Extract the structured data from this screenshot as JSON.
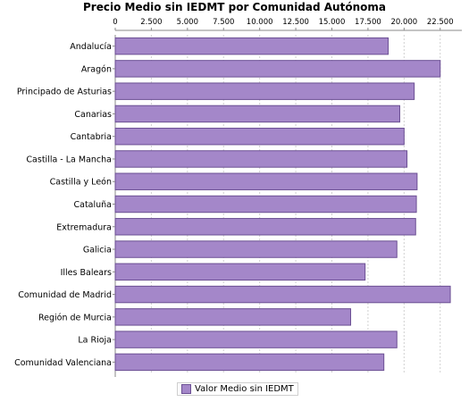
{
  "chart_data": {
    "type": "bar",
    "orientation": "horizontal",
    "title": "Precio Medio sin IEDMT por Comunidad Autónoma",
    "categories": [
      "Andalucía",
      "Aragón",
      "Principado de Asturias",
      "Canarias",
      "Cantabria",
      "Castilla - La Mancha",
      "Castilla y León",
      "Cataluña",
      "Extremadura",
      "Galicia",
      "Illes Balears",
      "Comunidad de Madrid",
      "Región de Murcia",
      "La Rioja",
      "Comunidad Valenciana"
    ],
    "series": [
      {
        "name": "Valor Medio sin IEDMT",
        "values": [
          18900,
          22500,
          20700,
          19700,
          20000,
          20200,
          20900,
          20850,
          20800,
          19500,
          17300,
          23200,
          16300,
          19500,
          18600
        ]
      }
    ],
    "x_ticks": [
      "0",
      "2.500",
      "5.000",
      "7.500",
      "10.000",
      "12.500",
      "15.000",
      "17.500",
      "20.000",
      "22.500"
    ],
    "xlim": [
      0,
      24000
    ],
    "grid": true,
    "legend_position": "bottom",
    "bar_color": "#a487c9",
    "bar_border_color": "#6b4f93"
  }
}
